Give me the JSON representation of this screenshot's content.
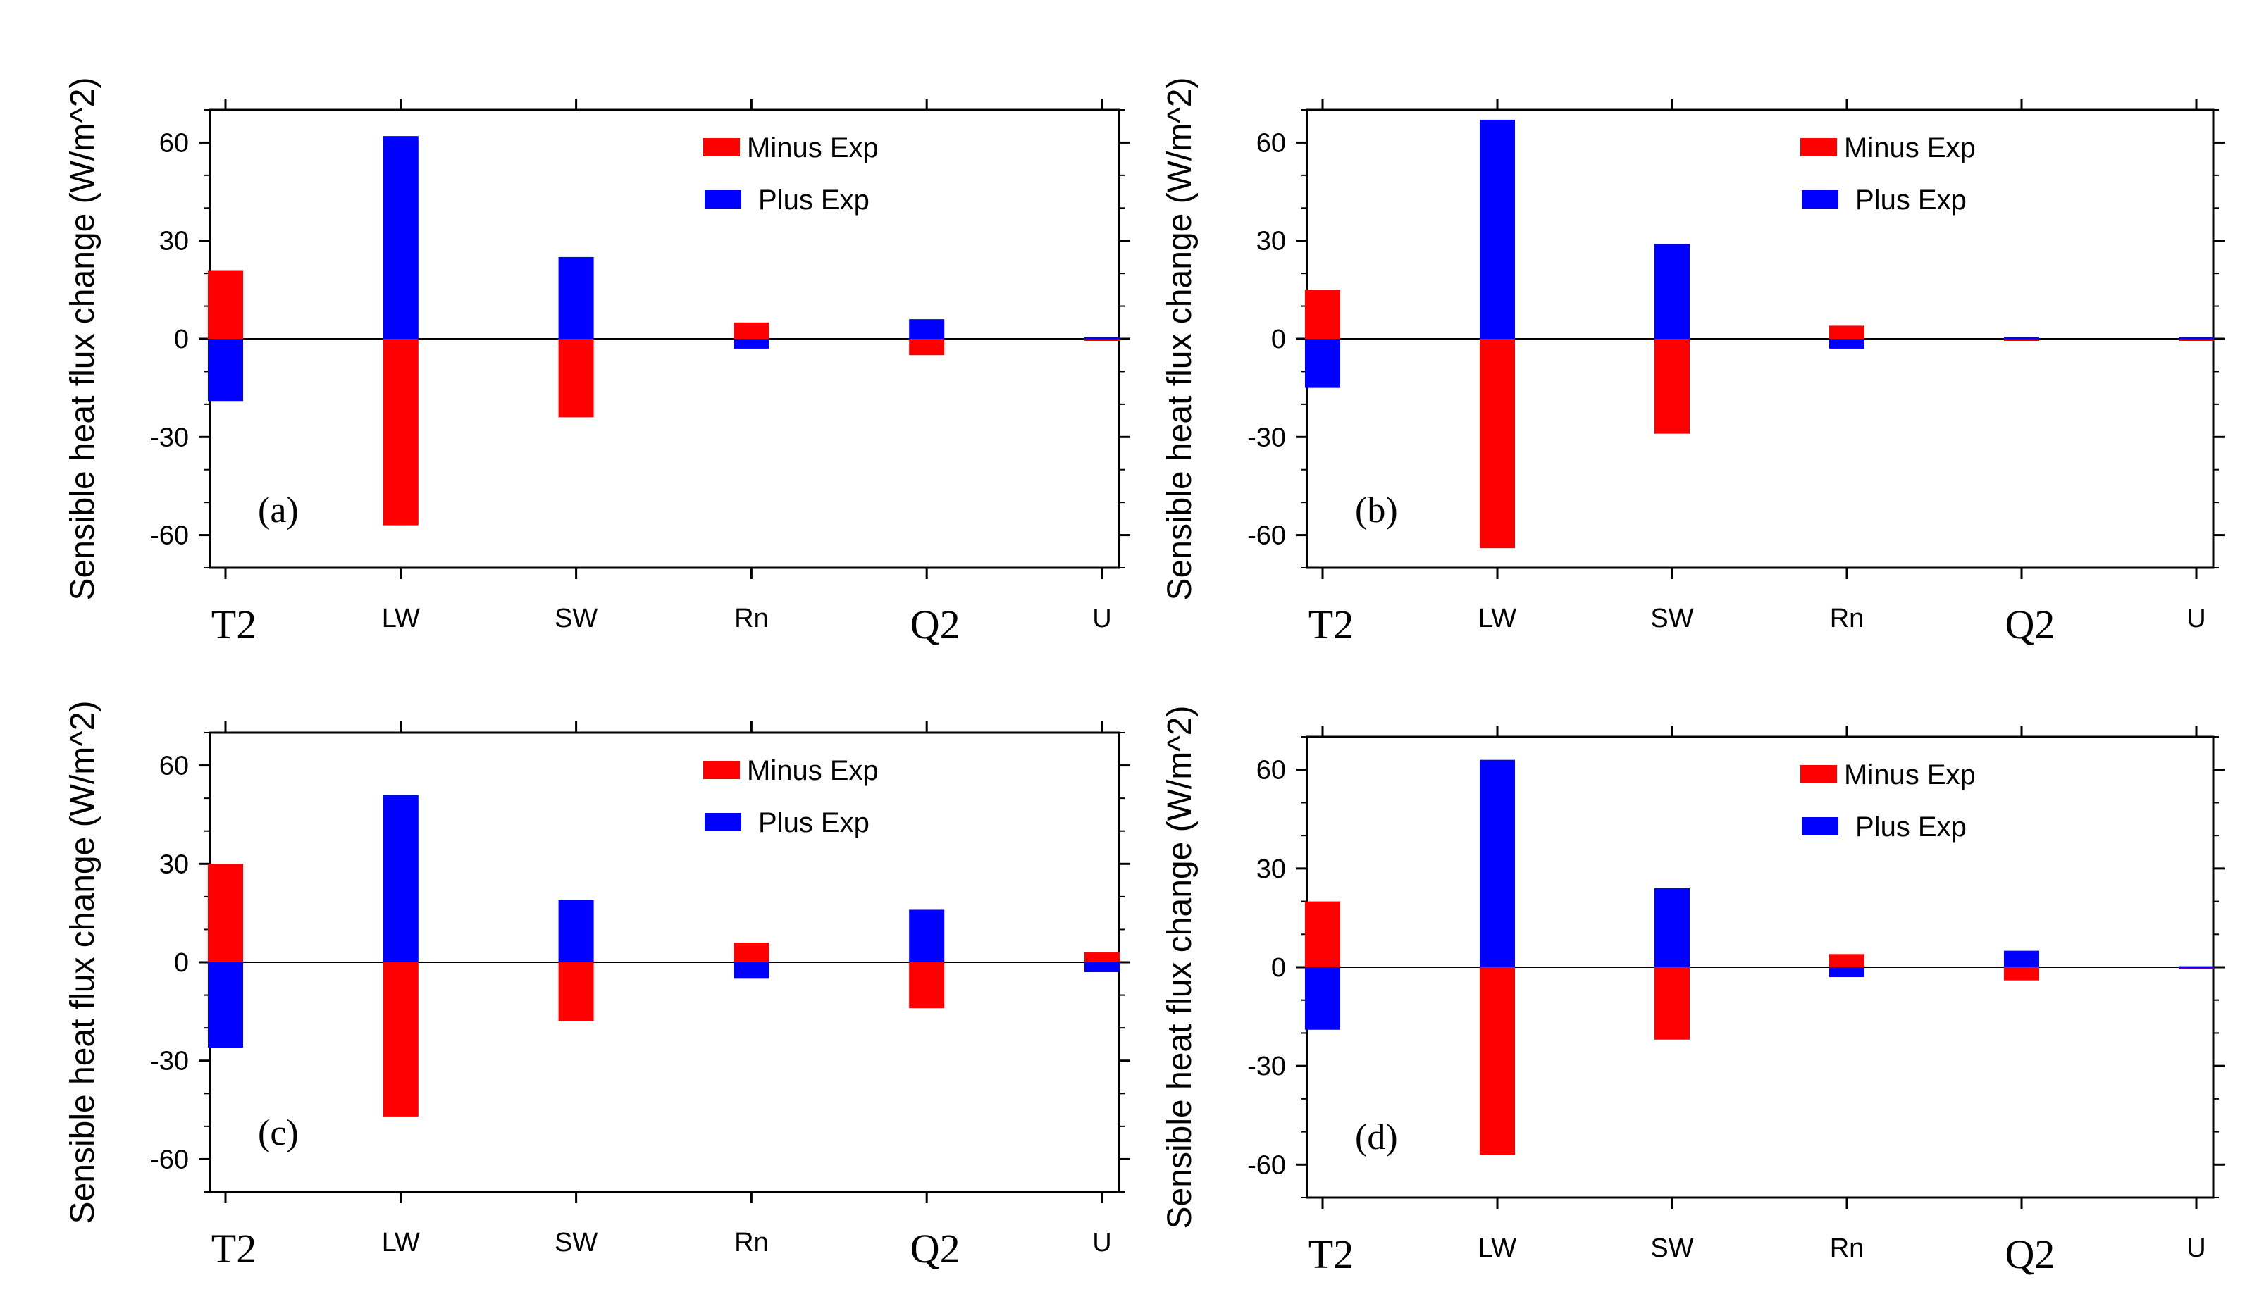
{
  "figure": {
    "title": ""
  },
  "chart_data": [
    {
      "type": "bar",
      "panel_label": "(a)",
      "ylabel": "Sensible heat flux change (W/m^2)",
      "xlabel": "",
      "ylim": [
        -70,
        70
      ],
      "yticks": [
        -60,
        -30,
        0,
        30,
        60
      ],
      "categories": [
        "T2",
        "LW",
        "SW",
        "Rn",
        "Q2",
        "U"
      ],
      "series": [
        {
          "name": "Minus Exp",
          "color": "#ff0000",
          "values": [
            21,
            -57,
            -24,
            5,
            -5,
            -0.5
          ]
        },
        {
          "name": "Plus Exp",
          "color": "#0000ff",
          "values": [
            -19,
            62,
            25,
            -3,
            6,
            0.5
          ]
        }
      ],
      "legend_position": "top-right"
    },
    {
      "type": "bar",
      "panel_label": "(b)",
      "ylabel": "Sensible heat flux change (W/m^2)",
      "xlabel": "",
      "ylim": [
        -70,
        70
      ],
      "yticks": [
        -60,
        -30,
        0,
        30,
        60
      ],
      "categories": [
        "T2",
        "LW",
        "SW",
        "Rn",
        "Q2",
        "U"
      ],
      "series": [
        {
          "name": "Minus Exp",
          "color": "#ff0000",
          "values": [
            15,
            -64,
            -29,
            4,
            -0.5,
            -0.5
          ]
        },
        {
          "name": "Plus Exp",
          "color": "#0000ff",
          "values": [
            -15,
            67,
            29,
            -3,
            0.5,
            0.5
          ]
        }
      ],
      "legend_position": "top-right"
    },
    {
      "type": "bar",
      "panel_label": "(c)",
      "ylabel": "Sensible heat flux change (W/m^2)",
      "xlabel": "",
      "ylim": [
        -70,
        70
      ],
      "yticks": [
        -60,
        -30,
        0,
        30,
        60
      ],
      "categories": [
        "T2",
        "LW",
        "SW",
        "Rn",
        "Q2",
        "U"
      ],
      "series": [
        {
          "name": "Minus Exp",
          "color": "#ff0000",
          "values": [
            30,
            -47,
            -18,
            6,
            -14,
            3
          ]
        },
        {
          "name": "Plus Exp",
          "color": "#0000ff",
          "values": [
            -26,
            51,
            19,
            -5,
            16,
            -3
          ]
        }
      ],
      "legend_position": "top-right"
    },
    {
      "type": "bar",
      "panel_label": "(d)",
      "ylabel": "Sensible heat flux change (W/m^2)",
      "xlabel": "",
      "ylim": [
        -70,
        70
      ],
      "yticks": [
        -60,
        -30,
        0,
        30,
        60
      ],
      "categories": [
        "T2",
        "LW",
        "SW",
        "Rn",
        "Q2",
        "U"
      ],
      "series": [
        {
          "name": "Minus Exp",
          "color": "#ff0000",
          "values": [
            20,
            -57,
            -22,
            4,
            -4,
            -0.3
          ]
        },
        {
          "name": "Plus Exp",
          "color": "#0000ff",
          "values": [
            -19,
            63,
            24,
            -3,
            5,
            0.3
          ]
        }
      ],
      "legend_position": "top-right"
    }
  ]
}
